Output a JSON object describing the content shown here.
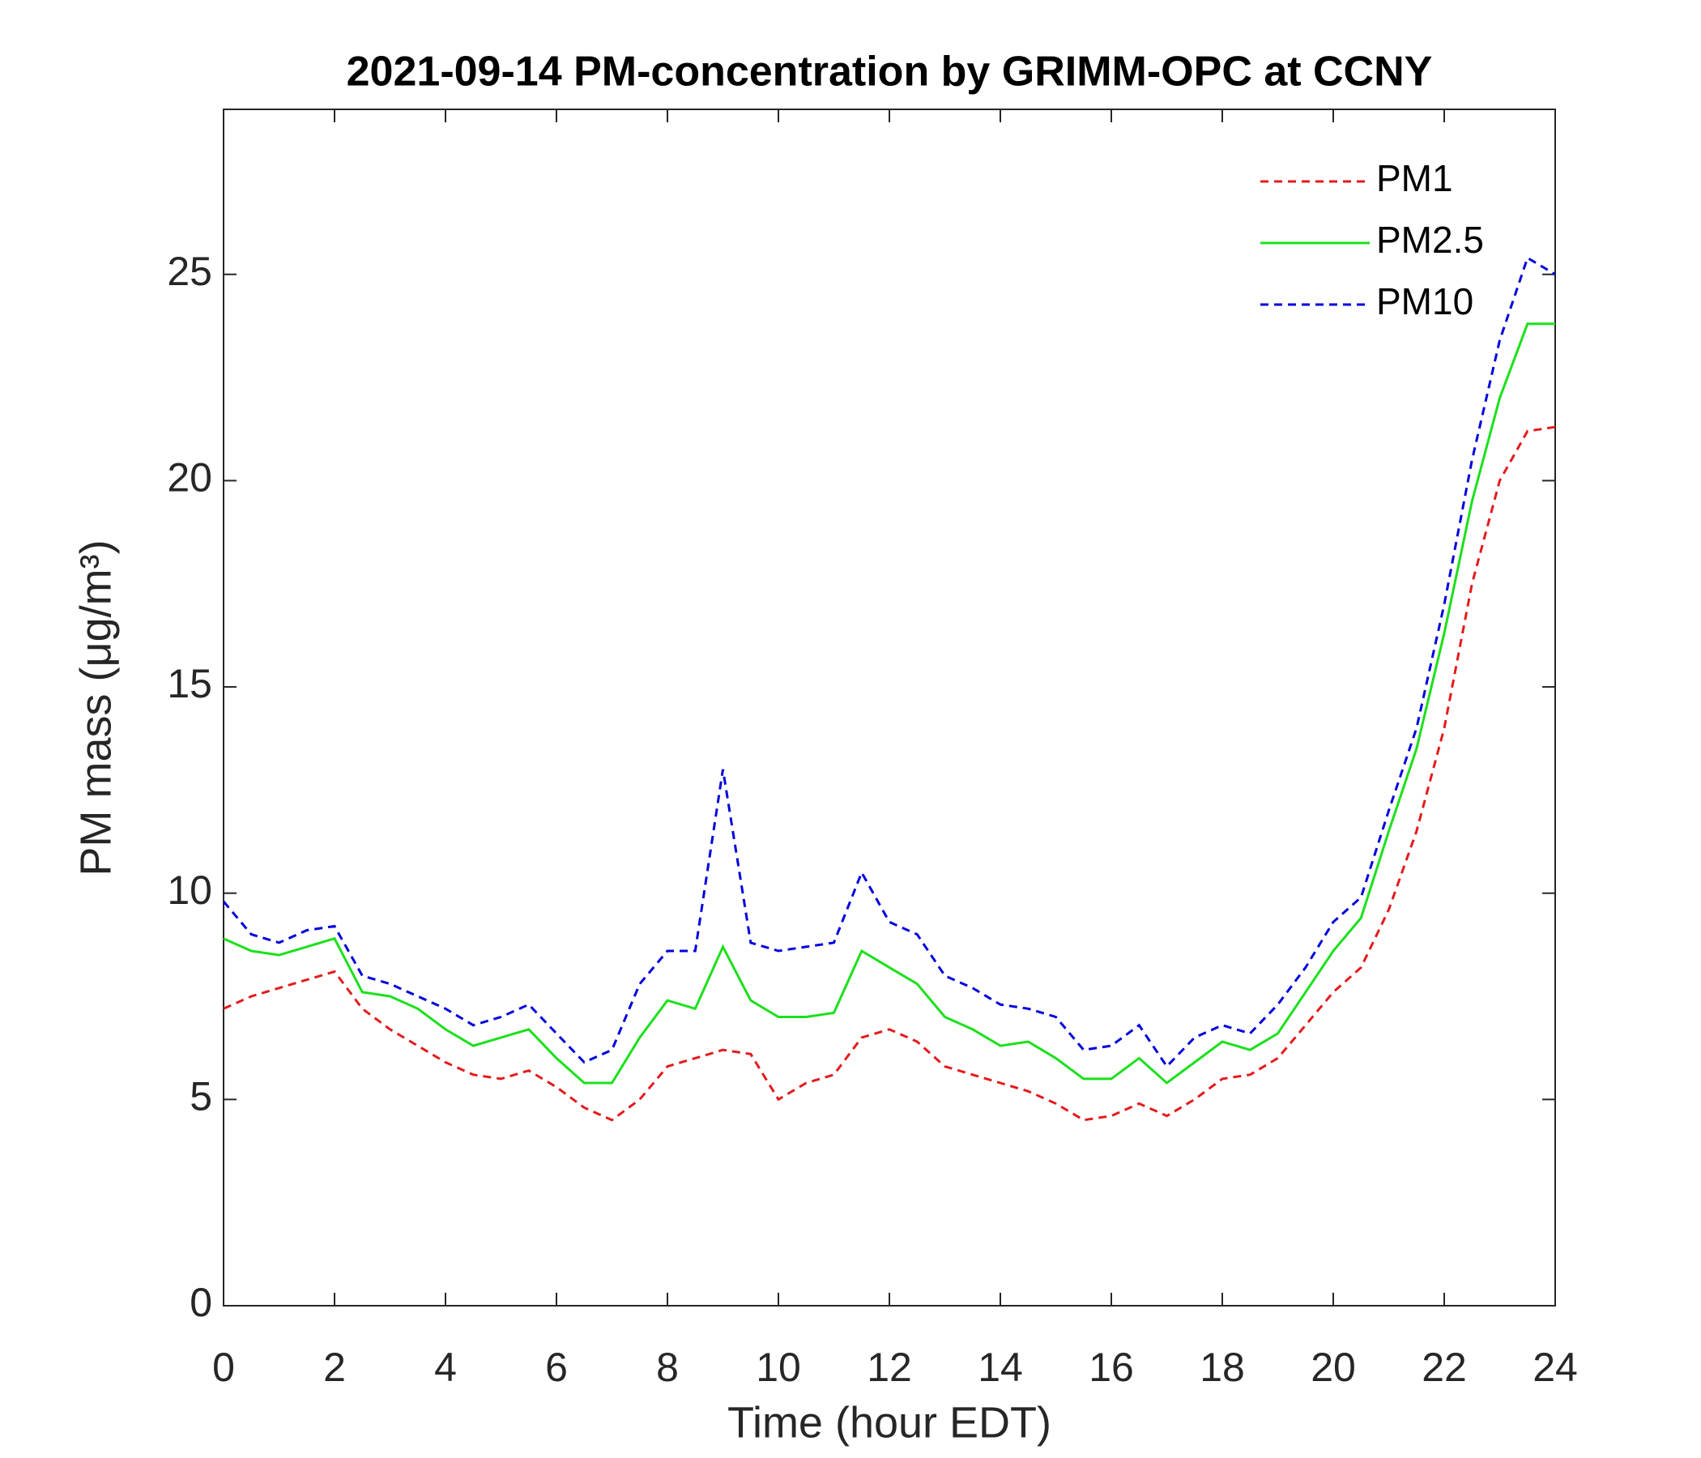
{
  "chart_data": {
    "type": "line",
    "title": "2021-09-14 PM-concentration by GRIMM-OPC at CCNY",
    "x_label": "Time (hour EDT)",
    "y_label": "PM mass (μg/m³)",
    "x": [
      0,
      0.5,
      1,
      1.5,
      2,
      2.5,
      3,
      3.5,
      4,
      4.5,
      5,
      5.5,
      6,
      6.5,
      7,
      7.5,
      8,
      8.5,
      9,
      9.5,
      10,
      10.5,
      11,
      11.5,
      12,
      12.5,
      13,
      13.5,
      14,
      14.5,
      15,
      15.5,
      16,
      16.5,
      17,
      17.5,
      18,
      18.5,
      19,
      19.5,
      20,
      20.5,
      21,
      21.5,
      22,
      22.5,
      23,
      23.5,
      24
    ],
    "series": [
      {
        "name": "PM1",
        "color": "#e41a1c",
        "style": "dashed",
        "values": [
          7.2,
          7.5,
          7.7,
          7.9,
          8.1,
          7.2,
          6.7,
          6.3,
          5.9,
          5.6,
          5.5,
          5.7,
          5.3,
          4.8,
          4.5,
          5.0,
          5.8,
          6.0,
          6.2,
          6.1,
          5.0,
          5.4,
          5.6,
          6.5,
          6.7,
          6.4,
          5.8,
          5.6,
          5.4,
          5.2,
          4.9,
          4.5,
          4.6,
          4.9,
          4.6,
          5.0,
          5.5,
          5.6,
          6.0,
          6.8,
          7.6,
          8.2,
          9.6,
          11.5,
          14.0,
          17.5,
          20.0,
          21.2,
          21.3
        ]
      },
      {
        "name": "PM2.5",
        "color": "#1be01b",
        "style": "solid",
        "values": [
          8.9,
          8.6,
          8.5,
          8.7,
          8.9,
          7.6,
          7.5,
          7.2,
          6.7,
          6.3,
          6.5,
          6.7,
          6.0,
          5.4,
          5.4,
          6.5,
          7.4,
          7.2,
          8.7,
          7.4,
          7.0,
          7.0,
          7.1,
          8.6,
          8.2,
          7.8,
          7.0,
          6.7,
          6.3,
          6.4,
          6.0,
          5.5,
          5.5,
          6.0,
          5.4,
          5.9,
          6.4,
          6.2,
          6.6,
          7.6,
          8.6,
          9.4,
          11.5,
          13.5,
          16.3,
          19.5,
          22.0,
          23.8,
          23.8
        ]
      },
      {
        "name": "PM10",
        "color": "#0000dd",
        "style": "dashed",
        "values": [
          9.8,
          9.0,
          8.8,
          9.1,
          9.2,
          8.0,
          7.8,
          7.5,
          7.2,
          6.8,
          7.0,
          7.3,
          6.6,
          5.9,
          6.2,
          7.8,
          8.6,
          8.6,
          13.0,
          8.8,
          8.6,
          8.7,
          8.8,
          10.5,
          9.3,
          9.0,
          8.0,
          7.7,
          7.3,
          7.2,
          7.0,
          6.2,
          6.3,
          6.8,
          5.8,
          6.5,
          6.8,
          6.6,
          7.3,
          8.2,
          9.3,
          9.9,
          12.0,
          14.0,
          17.0,
          20.5,
          23.4,
          25.4,
          25.0
        ]
      }
    ],
    "xlim": [
      0,
      24
    ],
    "xticks": [
      0,
      2,
      4,
      6,
      8,
      10,
      12,
      14,
      16,
      18,
      20,
      22,
      24
    ],
    "ylim": [
      0,
      29
    ],
    "yticks": [
      0,
      5,
      10,
      15,
      20,
      25
    ],
    "grid": false,
    "legend": "northeast"
  }
}
